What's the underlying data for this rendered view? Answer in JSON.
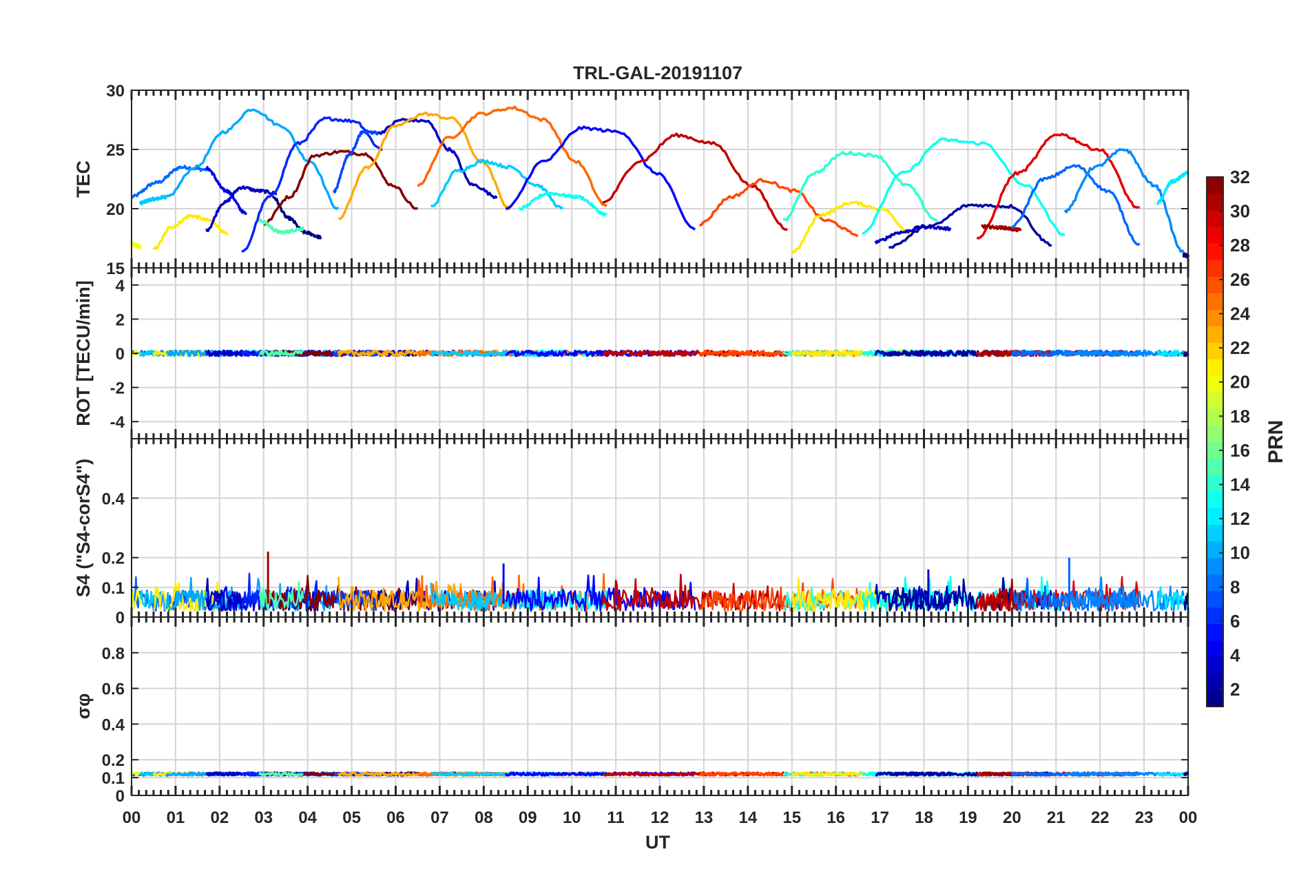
{
  "chart_data": {
    "type": "line",
    "title": "TRL-GAL-20191107",
    "xlabel": "UT",
    "x_ticks": [
      "00",
      "01",
      "02",
      "03",
      "04",
      "05",
      "06",
      "07",
      "08",
      "09",
      "10",
      "11",
      "12",
      "13",
      "14",
      "15",
      "16",
      "17",
      "18",
      "19",
      "20",
      "21",
      "22",
      "23",
      "00"
    ],
    "xlim": [
      0,
      24
    ],
    "grid": true,
    "colorbar": {
      "label": "PRN",
      "range": [
        1,
        32
      ],
      "ticks": [
        "2",
        "4",
        "6",
        "8",
        "10",
        "12",
        "14",
        "16",
        "18",
        "20",
        "22",
        "24",
        "26",
        "28",
        "30",
        "32"
      ],
      "colormap": "jet"
    },
    "panels": [
      {
        "name": "tec",
        "ylabel": "TEC",
        "ylim": [
          15,
          30
        ],
        "y_ticks": [
          "15",
          "20",
          "25",
          "30"
        ],
        "arcs": [
          {
            "prn": 8,
            "start": 0.0,
            "end": 1.7,
            "values": [
              21.0,
              22.2,
              23.5,
              23.3
            ]
          },
          {
            "prn": 11,
            "start": 0.2,
            "end": 0.8,
            "values": [
              20.5,
              20.8,
              21.0
            ]
          },
          {
            "prn": 20,
            "start": 0.0,
            "end": 0.2,
            "values": [
              17.0,
              16.8
            ]
          },
          {
            "prn": 21,
            "start": 0.5,
            "end": 2.2,
            "values": [
              16.6,
              18.5,
              19.4,
              19.0,
              17.8
            ]
          },
          {
            "prn": 10,
            "start": 0.8,
            "end": 4.7,
            "values": [
              21.0,
              23.5,
              26.5,
              28.4,
              27.0,
              24.0,
              20.0
            ]
          },
          {
            "prn": 4,
            "start": 1.7,
            "end": 2.6,
            "values": [
              23.4,
              21.5,
              19.6
            ]
          },
          {
            "prn": 3,
            "start": 1.7,
            "end": 3.3,
            "values": [
              18.2,
              20.5,
              21.8,
              21.5,
              21.3
            ]
          },
          {
            "prn": 1,
            "start": 3.2,
            "end": 4.3,
            "values": [
              21.0,
              19.2,
              18.0,
              17.6
            ]
          },
          {
            "prn": 6,
            "start": 2.5,
            "end": 5.7,
            "values": [
              16.3,
              21.0,
              25.5,
              27.6,
              27.4,
              25.0
            ]
          },
          {
            "prn": 32,
            "start": 3.0,
            "end": 6.5,
            "values": [
              18.7,
              21.0,
              24.5,
              24.8,
              24.6,
              22.0,
              20.0
            ]
          },
          {
            "prn": 15,
            "start": 2.9,
            "end": 3.9,
            "values": [
              19.0,
              18.0,
              18.3
            ]
          },
          {
            "prn": 7,
            "start": 4.6,
            "end": 5.6,
            "values": [
              21.5,
              24.5,
              26.5,
              26.4
            ]
          },
          {
            "prn": 3,
            "start": 5.6,
            "end": 8.3,
            "values": [
              26.4,
              27.5,
              27.4,
              25.0,
              22.0,
              21.0
            ]
          },
          {
            "prn": 23,
            "start": 4.7,
            "end": 8.6,
            "values": [
              19.2,
              23.5,
              27.0,
              28.0,
              27.6,
              24.0,
              20.0
            ]
          },
          {
            "prn": 25,
            "start": 6.5,
            "end": 10.8,
            "values": [
              22.0,
              26.0,
              28.0,
              28.5,
              27.5,
              24.0,
              20.2
            ]
          },
          {
            "prn": 11,
            "start": 6.8,
            "end": 9.8,
            "values": [
              20.2,
              23.2,
              24.0,
              23.5,
              22.0,
              20.0
            ]
          },
          {
            "prn": 13,
            "start": 8.8,
            "end": 10.8,
            "values": [
              20.0,
              21.3,
              21.0,
              19.5
            ]
          },
          {
            "prn": 5,
            "start": 8.5,
            "end": 12.8,
            "values": [
              20.0,
              24.0,
              26.8,
              26.5,
              23.0,
              18.3
            ]
          },
          {
            "prn": 30,
            "start": 10.7,
            "end": 14.9,
            "values": [
              20.5,
              24.0,
              26.2,
              25.5,
              22.0,
              18.3
            ]
          },
          {
            "prn": 26,
            "start": 12.9,
            "end": 16.5,
            "values": [
              18.7,
              21.0,
              22.4,
              21.5,
              19.0,
              17.8
            ]
          },
          {
            "prn": 14,
            "start": 14.8,
            "end": 18.3,
            "values": [
              19.0,
              23.0,
              24.7,
              24.5,
              22.0,
              19.0
            ]
          },
          {
            "prn": 21,
            "start": 15.0,
            "end": 17.7,
            "values": [
              16.3,
              19.5,
              20.5,
              20.0,
              18.0
            ]
          },
          {
            "prn": 13,
            "start": 16.6,
            "end": 21.2,
            "values": [
              18.0,
              23.0,
              25.8,
              25.5,
              22.0,
              17.8
            ]
          },
          {
            "prn": 3,
            "start": 16.9,
            "end": 18.6,
            "values": [
              17.2,
              18.0,
              18.5,
              18.3
            ]
          },
          {
            "prn": 2,
            "start": 17.2,
            "end": 20.9,
            "values": [
              16.8,
              18.5,
              20.3,
              20.2,
              17.0
            ]
          },
          {
            "prn": 29,
            "start": 19.2,
            "end": 22.9,
            "values": [
              17.5,
              23.0,
              26.3,
              25.0,
              20.0
            ]
          },
          {
            "prn": 31,
            "start": 19.3,
            "end": 20.2,
            "values": [
              18.5,
              18.4,
              18.2
            ]
          },
          {
            "prn": 8,
            "start": 20.0,
            "end": 22.9,
            "values": [
              18.5,
              22.5,
              23.6,
              21.5,
              17.0
            ]
          },
          {
            "prn": 9,
            "start": 21.2,
            "end": 23.9,
            "values": [
              19.8,
              23.5,
              25.0,
              22.0,
              16.3
            ]
          },
          {
            "prn": 12,
            "start": 23.3,
            "end": 24.0,
            "values": [
              20.5,
              22.3,
              23.0
            ]
          },
          {
            "prn": 1,
            "start": 23.9,
            "end": 24.0,
            "values": [
              16.1,
              16.0
            ]
          }
        ]
      },
      {
        "name": "rot",
        "ylabel": "ROT [TECU/min]",
        "ylim": [
          -5,
          5
        ],
        "y_ticks": [
          "-4",
          "-2",
          "0",
          "2",
          "4"
        ],
        "level": 0,
        "noise": 0.15
      },
      {
        "name": "s4",
        "ylabel": "S4 (\"S4-corS4\")",
        "ylim": [
          0,
          0.6
        ],
        "y_ticks": [
          "0",
          "0.1",
          "0.2",
          "0.4"
        ],
        "level": 0.045,
        "noise": 0.035,
        "spikes": [
          {
            "t": 3.1,
            "value": 0.22,
            "prn": 31
          },
          {
            "t": 8.45,
            "value": 0.18,
            "prn": 4
          },
          {
            "t": 21.3,
            "value": 0.2,
            "prn": 8
          },
          {
            "t": 18.1,
            "value": 0.16,
            "prn": 3
          },
          {
            "t": 6.6,
            "value": 0.14,
            "prn": 25
          }
        ]
      },
      {
        "name": "sigma_phi",
        "ylabel": "σφ",
        "ylim": [
          0,
          1
        ],
        "y_ticks": [
          "0",
          "0.1",
          "0.2",
          "0.4",
          "0.6",
          "0.8"
        ],
        "level": 0.12,
        "noise": 0.008
      }
    ]
  }
}
